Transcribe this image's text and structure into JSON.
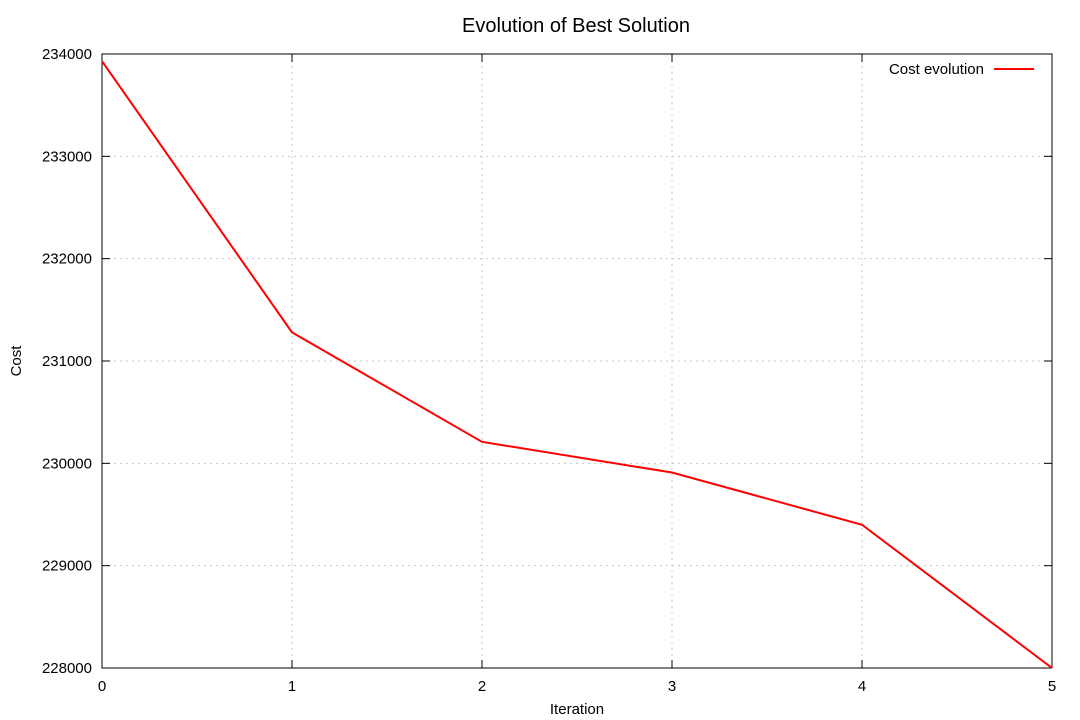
{
  "chart_data": {
    "type": "line",
    "title": "Evolution of Best Solution",
    "xlabel": "Iteration",
    "ylabel": "Cost",
    "x": [
      0,
      1,
      2,
      3,
      4,
      5
    ],
    "xlim": [
      0,
      5
    ],
    "ylim": [
      228000,
      234000
    ],
    "x_ticks": [
      "0",
      "1",
      "2",
      "3",
      "4",
      "5"
    ],
    "y_ticks": [
      "228000",
      "229000",
      "230000",
      "231000",
      "232000",
      "233000",
      "234000"
    ],
    "grid": true,
    "legend_position": "top-right",
    "series": [
      {
        "name": "Cost evolution",
        "color": "#ff0000",
        "values": [
          233930,
          231280,
          230210,
          229910,
          229400,
          228000
        ]
      }
    ]
  }
}
